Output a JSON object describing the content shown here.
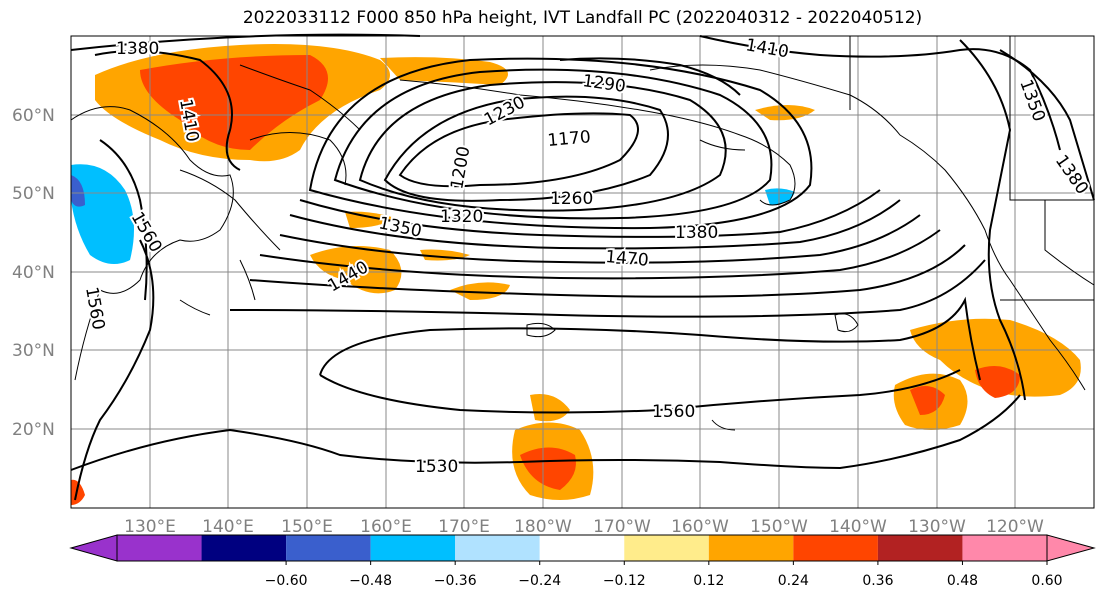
{
  "title": "2022033112 F000 850 hPa height, IVT Landfall PC (2022040312 - 2022040512)",
  "latitude_labels": [
    "60°N",
    "50°N",
    "40°N",
    "30°N",
    "20°N"
  ],
  "longitude_labels": [
    "130°E",
    "140°E",
    "150°E",
    "160°E",
    "170°E",
    "180°W",
    "170°W",
    "160°W",
    "150°W",
    "140°W",
    "130°W",
    "120°W"
  ],
  "contour_labels": [
    "1380",
    "1410",
    "1290",
    "1230",
    "1170",
    "1200",
    "1410",
    "1350",
    "1320",
    "1260",
    "1380",
    "1470",
    "1440",
    "1560",
    "1560",
    "1560",
    "1530",
    "1350",
    "1380"
  ],
  "colorbar": {
    "ticks": [
      "−0.60",
      "−0.48",
      "−0.36",
      "−0.24",
      "−0.12",
      "0.12",
      "0.24",
      "0.36",
      "0.48",
      "0.60"
    ],
    "colors": [
      "#9932cc",
      "#000080",
      "#3a5fcd",
      "#00bfff",
      "#b0e2ff",
      "#ffffff",
      "#ffec8b",
      "#ffa500",
      "#ff4500",
      "#b22222",
      "#ff88aa"
    ]
  }
}
